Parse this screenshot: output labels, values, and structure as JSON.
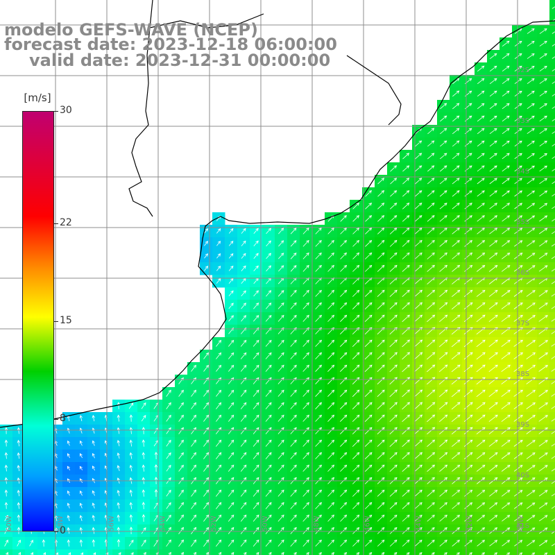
{
  "title": {
    "line1": "modelo GEFS-WAVE (NCEP)",
    "line2": "forecast date: 2023-12-18 06:00:00",
    "line3": "valid date: 2023-12-31 00:00:00"
  },
  "colorbar": {
    "unit": "[m/s]",
    "ticks": [
      {
        "label": "30",
        "value": 30
      },
      {
        "label": "22",
        "value": 22
      },
      {
        "label": "15",
        "value": 15
      },
      {
        "label": "8",
        "value": 8
      },
      {
        "label": "0",
        "value": 0
      }
    ],
    "range": [
      0,
      30
    ]
  },
  "colors": {
    "land": "#ffffff",
    "grid": "#8c8c8c",
    "coast": "#000000",
    "arrow": "#ffffff",
    "label": "#8a8a8a"
  },
  "map": {
    "variable": "wind speed and direction",
    "unit": "m/s",
    "longitude_labels": [
      "60W",
      "58W",
      "56W",
      "54W",
      "52W",
      "50W",
      "48W",
      "46W",
      "44W",
      "42W",
      "40W"
    ],
    "latitude_labels": [
      "32S",
      "33S",
      "34S",
      "35S",
      "36S",
      "37S",
      "38S",
      "39S",
      "40S",
      "41S"
    ]
  }
}
